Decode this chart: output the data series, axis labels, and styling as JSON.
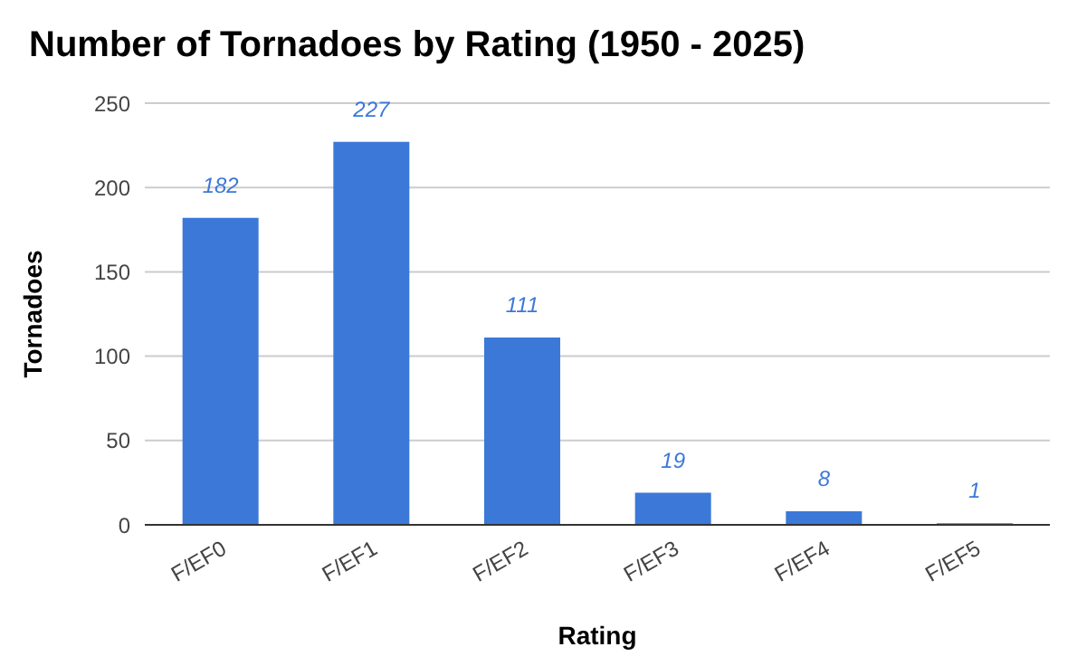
{
  "chart_data": {
    "type": "bar",
    "title": "Number of Tornadoes by Rating (1950 - 2025)",
    "xlabel": "Rating",
    "ylabel": "Tornadoes",
    "categories": [
      "F/EF0",
      "F/EF1",
      "F/EF2",
      "F/EF3",
      "F/EF4",
      "F/EF5"
    ],
    "values": [
      182,
      227,
      111,
      19,
      8,
      1
    ],
    "color": "#3c78d8",
    "ylim": [
      0,
      250
    ],
    "yticks": [
      0,
      50,
      100,
      150,
      200,
      250
    ],
    "grid": "y",
    "data_labels": true,
    "legend": false
  }
}
